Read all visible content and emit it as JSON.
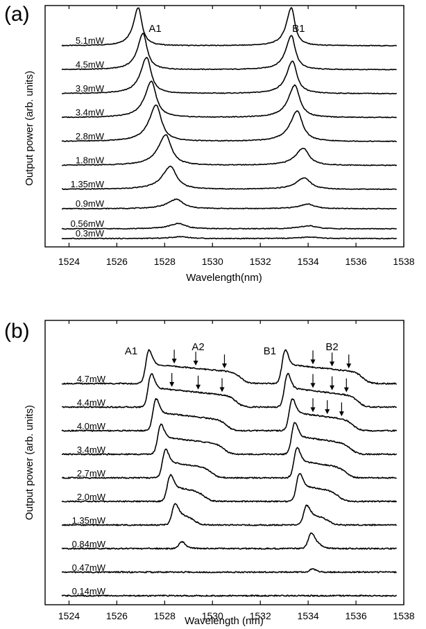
{
  "chart_data": [
    {
      "type": "line",
      "panel": "(a)",
      "xlabel": "Wavelength(nm)",
      "ylabel": "Output power (arb. units)",
      "xlim": [
        1523,
        1538
      ],
      "xticks": [
        1524,
        1526,
        1528,
        1530,
        1532,
        1534,
        1536,
        1538
      ],
      "peak_labels": [
        {
          "text": "A1",
          "x": 1527.6
        },
        {
          "text": "B1",
          "x": 1533.6
        }
      ],
      "series": [
        {
          "name": "5.1mW",
          "peaks": [
            {
              "center": 1526.9,
              "height": 1.0
            },
            {
              "center": 1533.3,
              "height": 1.0
            }
          ]
        },
        {
          "name": "4.5mW",
          "peaks": [
            {
              "center": 1527.1,
              "height": 0.95
            },
            {
              "center": 1533.3,
              "height": 0.9
            }
          ]
        },
        {
          "name": "3.9mW",
          "peaks": [
            {
              "center": 1527.25,
              "height": 0.95
            },
            {
              "center": 1533.35,
              "height": 0.85
            }
          ]
        },
        {
          "name": "3.4mW",
          "peaks": [
            {
              "center": 1527.45,
              "height": 0.95
            },
            {
              "center": 1533.45,
              "height": 0.85
            }
          ]
        },
        {
          "name": "2.8mW",
          "peaks": [
            {
              "center": 1527.65,
              "height": 0.95
            },
            {
              "center": 1533.55,
              "height": 0.8
            }
          ]
        },
        {
          "name": "1.8mW",
          "peaks": [
            {
              "center": 1528.05,
              "height": 0.8
            },
            {
              "center": 1533.8,
              "height": 0.45
            }
          ]
        },
        {
          "name": "1.35mW",
          "peaks": [
            {
              "center": 1528.25,
              "height": 0.6
            },
            {
              "center": 1533.85,
              "height": 0.3
            }
          ]
        },
        {
          "name": "0.9mW",
          "peaks": [
            {
              "center": 1528.5,
              "height": 0.25
            },
            {
              "center": 1534.0,
              "height": 0.12
            }
          ]
        },
        {
          "name": "0.56mW",
          "peaks": [
            {
              "center": 1528.6,
              "height": 0.14
            },
            {
              "center": 1534.05,
              "height": 0.08
            }
          ]
        },
        {
          "name": "0.3mW",
          "peaks": [
            {
              "center": 1528.7,
              "height": 0.05
            },
            {
              "center": 1534.1,
              "height": 0.04
            }
          ]
        }
      ]
    },
    {
      "type": "line",
      "panel": "(b)",
      "xlabel": "Wavelength (nm)",
      "ylabel": "Output power (arb. units)",
      "xlim": [
        1523,
        1538
      ],
      "xticks": [
        1524,
        1526,
        1528,
        1530,
        1532,
        1534,
        1536,
        1538
      ],
      "peak_labels": [
        {
          "text": "A1",
          "x": 1526.6
        },
        {
          "text": "A2",
          "x": 1529.4
        },
        {
          "text": "B1",
          "x": 1532.4
        },
        {
          "text": "B2",
          "x": 1535.0
        }
      ],
      "arrows": [
        {
          "series": "4.7mW",
          "x": [
            1528.4,
            1529.3,
            1530.5,
            1534.2,
            1535.0,
            1535.7
          ]
        },
        {
          "series": "4.4mW",
          "x": [
            1528.3,
            1529.4,
            1530.4,
            1534.2,
            1535.0,
            1535.6
          ]
        },
        {
          "series": "4.0mW",
          "x": [
            1534.2,
            1534.8,
            1535.4
          ]
        }
      ],
      "series": [
        {
          "name": "4.7mW",
          "edges": [
            {
              "start": 1527.2,
              "end": 1531.2,
              "height": 1.0
            },
            {
              "start": 1532.9,
              "end": 1536.3,
              "height": 1.0
            }
          ]
        },
        {
          "name": "4.4mW",
          "edges": [
            {
              "start": 1527.3,
              "end": 1531.0,
              "height": 1.0
            },
            {
              "start": 1533.0,
              "end": 1536.1,
              "height": 1.0
            }
          ]
        },
        {
          "name": "4.0mW",
          "edges": [
            {
              "start": 1527.5,
              "end": 1530.6,
              "height": 0.95
            },
            {
              "start": 1533.2,
              "end": 1535.9,
              "height": 0.95
            }
          ]
        },
        {
          "name": "3.4mW",
          "edges": [
            {
              "start": 1527.7,
              "end": 1530.5,
              "height": 0.9
            },
            {
              "start": 1533.3,
              "end": 1535.8,
              "height": 0.95
            }
          ]
        },
        {
          "name": "2.7mW",
          "edges": [
            {
              "start": 1527.9,
              "end": 1530.0,
              "height": 0.85
            },
            {
              "start": 1533.4,
              "end": 1535.6,
              "height": 0.9
            }
          ]
        },
        {
          "name": "2.0mW",
          "edges": [
            {
              "start": 1528.1,
              "end": 1529.7,
              "height": 0.8
            },
            {
              "start": 1533.5,
              "end": 1535.3,
              "height": 0.85
            }
          ]
        },
        {
          "name": "1.35mW",
          "edges": [
            {
              "start": 1528.3,
              "end": 1529.3,
              "height": 0.65
            },
            {
              "start": 1533.8,
              "end": 1534.9,
              "height": 0.6
            }
          ]
        },
        {
          "name": "0.84mW",
          "edges": [
            {
              "start": 1528.6,
              "end": 1529.0,
              "height": 0.25
            },
            {
              "start": 1534.0,
              "end": 1534.6,
              "height": 0.5
            }
          ]
        },
        {
          "name": "0.47mW",
          "edges": [
            {
              "start": 1534.1,
              "end": 1534.3,
              "height": 0.18
            }
          ]
        },
        {
          "name": "0.14mW",
          "edges": []
        }
      ]
    }
  ]
}
